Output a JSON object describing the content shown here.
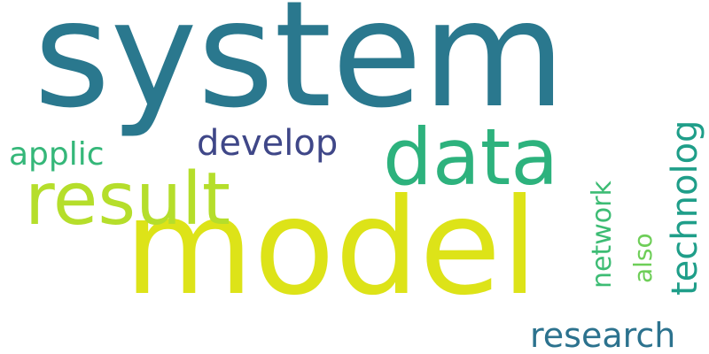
{
  "words": [
    {
      "key": "system",
      "text": "system",
      "color": "#2a788e",
      "weight": 1.0
    },
    {
      "key": "model",
      "text": "model",
      "color": "#dde318",
      "weight": 0.98
    },
    {
      "key": "data",
      "text": "data",
      "color": "#2db27d",
      "weight": 0.55
    },
    {
      "key": "result",
      "text": "result",
      "color": "#b5de2b",
      "weight": 0.5
    },
    {
      "key": "develop",
      "text": "develop",
      "color": "#3f4788",
      "weight": 0.28
    },
    {
      "key": "applic",
      "text": "applic",
      "color": "#35b779",
      "weight": 0.24
    },
    {
      "key": "technolog",
      "text": "technolog",
      "color": "#1f9e89",
      "weight": 0.26
    },
    {
      "key": "network",
      "text": "network",
      "color": "#3dbc74",
      "weight": 0.22
    },
    {
      "key": "also",
      "text": "also",
      "color": "#6ece58",
      "weight": 0.2
    },
    {
      "key": "research",
      "text": "research",
      "color": "#2c728e",
      "weight": 0.26
    }
  ]
}
